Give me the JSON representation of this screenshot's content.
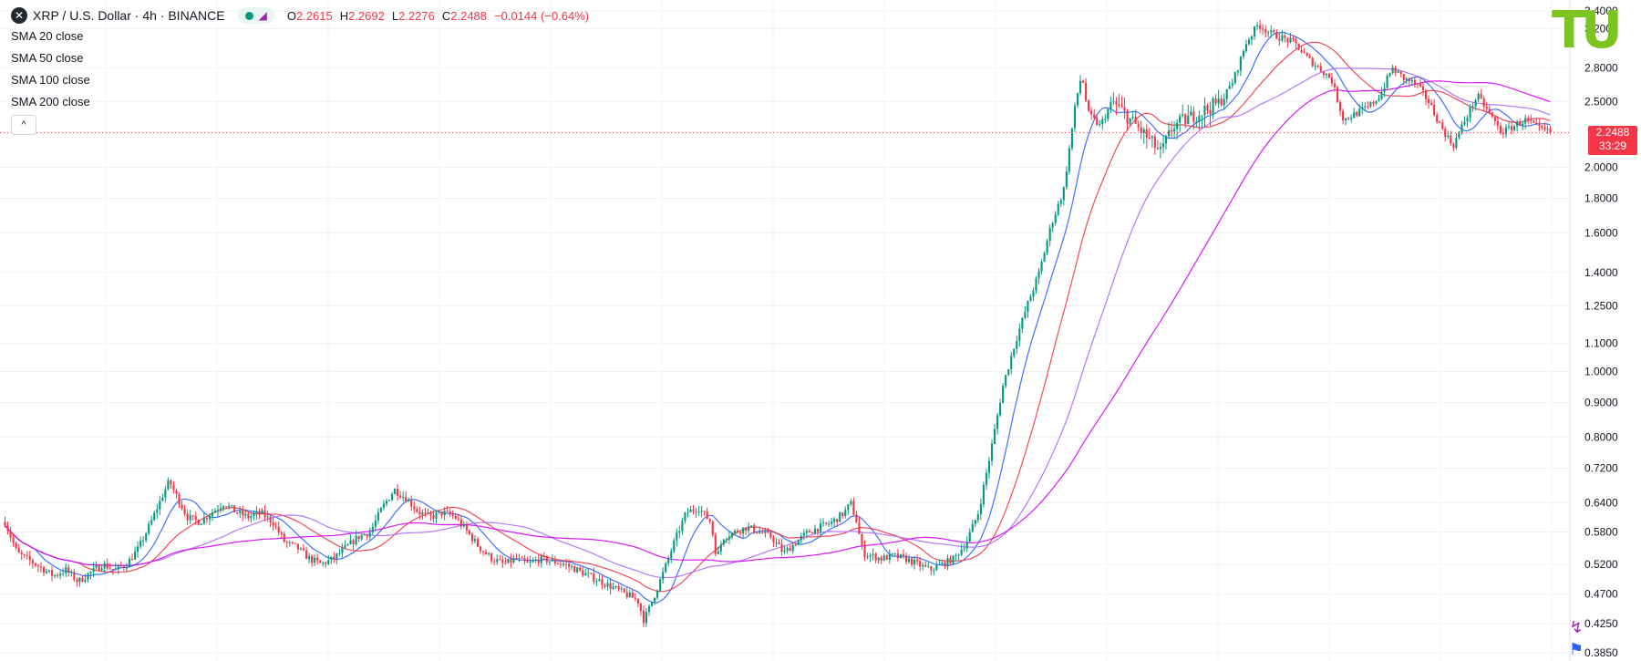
{
  "header": {
    "symbol_logo": "✕",
    "title": "XRP / U.S. Dollar · 4h · BINANCE",
    "open_label": "O",
    "open": "2.2615",
    "high_label": "H",
    "high": "2.2692",
    "low_label": "L",
    "low": "2.2276",
    "close_label": "C",
    "close": "2.2488",
    "change": "−0.0144 (−0.64%)"
  },
  "indicators": [
    {
      "name": "SMA",
      "params": "20 close"
    },
    {
      "name": "SMA",
      "params": "50 close"
    },
    {
      "name": "SMA",
      "params": "100 close"
    },
    {
      "name": "SMA",
      "params": "200 close"
    }
  ],
  "collapse_glyph": "^",
  "logo_text": "TU",
  "price_badge": {
    "price": "2.2488",
    "countdown": "33:29"
  },
  "colors": {
    "up": "#089981",
    "down": "#f23645",
    "sma20": "#2962ff",
    "sma50": "#f23645",
    "sma100": "#ac6cf5",
    "sma200": "#d500f9"
  },
  "chart_data": {
    "type": "candlestick",
    "scale": "log",
    "ylim": [
      0.385,
      3.4
    ],
    "y_ticks": [
      "3.4000",
      "3.2000",
      "2.8000",
      "2.5000",
      "2.2488",
      "2.0000",
      "1.8000",
      "1.6000",
      "1.4000",
      "1.2500",
      "1.1000",
      "1.0000",
      "0.9000",
      "0.8000",
      "0.7200",
      "0.6400",
      "0.5800",
      "0.5200",
      "0.4700",
      "0.4250",
      "0.3850"
    ],
    "grid": true,
    "last_price": 2.2488,
    "price_trace": [
      [
        0,
        0.6
      ],
      [
        2,
        0.54
      ],
      [
        5,
        0.52
      ],
      [
        8,
        0.5
      ],
      [
        10,
        0.51
      ],
      [
        12,
        0.49
      ],
      [
        14,
        0.505
      ],
      [
        16,
        0.52
      ],
      [
        18,
        0.51
      ],
      [
        20,
        0.52
      ],
      [
        22,
        0.55
      ],
      [
        24,
        0.6
      ],
      [
        26,
        0.66
      ],
      [
        27,
        0.69
      ],
      [
        28,
        0.66
      ],
      [
        30,
        0.61
      ],
      [
        32,
        0.6
      ],
      [
        34,
        0.62
      ],
      [
        36,
        0.64
      ],
      [
        38,
        0.62
      ],
      [
        40,
        0.61
      ],
      [
        42,
        0.62
      ],
      [
        44,
        0.6
      ],
      [
        46,
        0.56
      ],
      [
        48,
        0.55
      ],
      [
        50,
        0.53
      ],
      [
        52,
        0.52
      ],
      [
        54,
        0.53
      ],
      [
        56,
        0.55
      ],
      [
        58,
        0.57
      ],
      [
        60,
        0.58
      ],
      [
        62,
        0.63
      ],
      [
        64,
        0.67
      ],
      [
        66,
        0.65
      ],
      [
        68,
        0.62
      ],
      [
        70,
        0.61
      ],
      [
        72,
        0.62
      ],
      [
        74,
        0.61
      ],
      [
        76,
        0.58
      ],
      [
        78,
        0.55
      ],
      [
        80,
        0.53
      ],
      [
        82,
        0.52
      ],
      [
        84,
        0.53
      ],
      [
        86,
        0.52
      ],
      [
        88,
        0.53
      ],
      [
        90,
        0.525
      ],
      [
        92,
        0.52
      ],
      [
        94,
        0.51
      ],
      [
        96,
        0.5
      ],
      [
        98,
        0.49
      ],
      [
        100,
        0.48
      ],
      [
        102,
        0.47
      ],
      [
        104,
        0.46
      ],
      [
        105,
        0.43
      ],
      [
        106,
        0.45
      ],
      [
        108,
        0.5
      ],
      [
        110,
        0.56
      ],
      [
        112,
        0.62
      ],
      [
        114,
        0.63
      ],
      [
        116,
        0.6
      ],
      [
        117,
        0.53
      ],
      [
        118,
        0.57
      ],
      [
        120,
        0.58
      ],
      [
        122,
        0.59
      ],
      [
        124,
        0.58
      ],
      [
        126,
        0.57
      ],
      [
        128,
        0.54
      ],
      [
        130,
        0.56
      ],
      [
        132,
        0.58
      ],
      [
        134,
        0.59
      ],
      [
        136,
        0.6
      ],
      [
        138,
        0.62
      ],
      [
        139,
        0.64
      ],
      [
        140,
        0.6
      ],
      [
        141,
        0.54
      ],
      [
        144,
        0.53
      ],
      [
        146,
        0.535
      ],
      [
        148,
        0.53
      ],
      [
        150,
        0.52
      ],
      [
        152,
        0.51
      ],
      [
        154,
        0.52
      ],
      [
        156,
        0.53
      ],
      [
        158,
        0.56
      ],
      [
        160,
        0.62
      ],
      [
        162,
        0.76
      ],
      [
        164,
        0.95
      ],
      [
        166,
        1.1
      ],
      [
        168,
        1.25
      ],
      [
        170,
        1.4
      ],
      [
        172,
        1.65
      ],
      [
        174,
        1.85
      ],
      [
        175,
        2.15
      ],
      [
        176,
        2.5
      ],
      [
        177,
        2.75
      ],
      [
        178,
        2.4
      ],
      [
        180,
        2.3
      ],
      [
        182,
        2.5
      ],
      [
        184,
        2.4
      ],
      [
        186,
        2.3
      ],
      [
        188,
        2.2
      ],
      [
        190,
        2.1
      ],
      [
        192,
        2.3
      ],
      [
        194,
        2.35
      ],
      [
        196,
        2.4
      ],
      [
        198,
        2.45
      ],
      [
        200,
        2.5
      ],
      [
        202,
        2.7
      ],
      [
        204,
        3.05
      ],
      [
        206,
        3.25
      ],
      [
        208,
        3.15
      ],
      [
        210,
        3.1
      ],
      [
        212,
        3.05
      ],
      [
        214,
        2.9
      ],
      [
        216,
        2.8
      ],
      [
        218,
        2.7
      ],
      [
        220,
        2.35
      ],
      [
        222,
        2.4
      ],
      [
        224,
        2.45
      ],
      [
        226,
        2.55
      ],
      [
        228,
        2.8
      ],
      [
        230,
        2.7
      ],
      [
        232,
        2.65
      ],
      [
        234,
        2.5
      ],
      [
        236,
        2.3
      ],
      [
        238,
        2.15
      ],
      [
        240,
        2.35
      ],
      [
        242,
        2.55
      ],
      [
        244,
        2.4
      ],
      [
        246,
        2.25
      ],
      [
        248,
        2.3
      ],
      [
        250,
        2.35
      ],
      [
        252,
        2.28
      ],
      [
        254,
        2.2488
      ]
    ],
    "series": [
      {
        "name": "SMA 20 close"
      },
      {
        "name": "SMA 50 close"
      },
      {
        "name": "SMA 100 close"
      },
      {
        "name": "SMA 200 close"
      }
    ]
  }
}
